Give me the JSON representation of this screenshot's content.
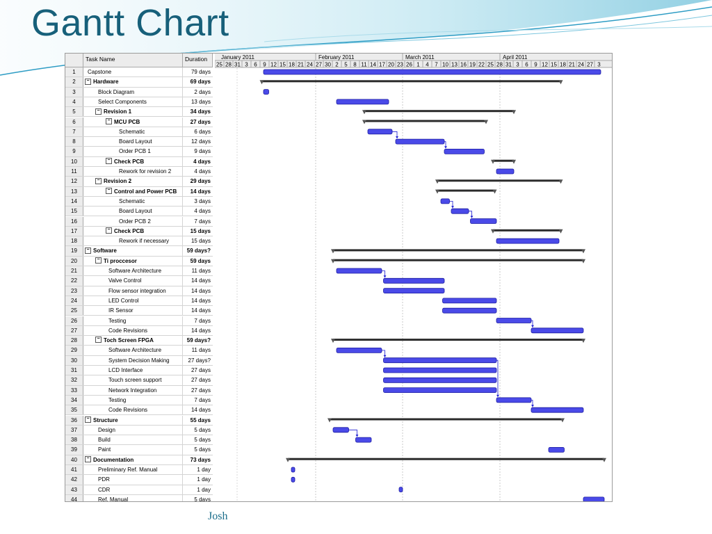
{
  "slide": {
    "title": "Gantt Chart",
    "author": "Josh"
  },
  "table": {
    "col_task": "Task Name",
    "col_duration": "Duration",
    "rows": [
      {
        "id": "1",
        "name": "Capstone",
        "dur": "79 days",
        "indent": 0,
        "bold": false,
        "summary": false
      },
      {
        "id": "2",
        "name": "Hardware",
        "dur": "69 days",
        "indent": 0,
        "bold": true,
        "summary": true
      },
      {
        "id": "3",
        "name": "Block Diagram",
        "dur": "2 days",
        "indent": 1,
        "bold": false,
        "summary": false
      },
      {
        "id": "4",
        "name": "Select Components",
        "dur": "13 days",
        "indent": 1,
        "bold": false,
        "summary": false
      },
      {
        "id": "5",
        "name": "Revision 1",
        "dur": "34 days",
        "indent": 1,
        "bold": true,
        "summary": true
      },
      {
        "id": "6",
        "name": "MCU PCB",
        "dur": "27 days",
        "indent": 2,
        "bold": true,
        "summary": true
      },
      {
        "id": "7",
        "name": "Schematic",
        "dur": "6 days",
        "indent": 3,
        "bold": false,
        "summary": false
      },
      {
        "id": "8",
        "name": "Board Layout",
        "dur": "12 days",
        "indent": 3,
        "bold": false,
        "summary": false
      },
      {
        "id": "9",
        "name": "Order PCB 1",
        "dur": "9 days",
        "indent": 3,
        "bold": false,
        "summary": false
      },
      {
        "id": "10",
        "name": "Check PCB",
        "dur": "4 days",
        "indent": 2,
        "bold": true,
        "summary": true
      },
      {
        "id": "11",
        "name": "Rework for revision 2",
        "dur": "4 days",
        "indent": 3,
        "bold": false,
        "summary": false
      },
      {
        "id": "12",
        "name": "Revision 2",
        "dur": "29 days",
        "indent": 1,
        "bold": true,
        "summary": true
      },
      {
        "id": "13",
        "name": "Control and Power PCB",
        "dur": "14 days",
        "indent": 2,
        "bold": true,
        "summary": true
      },
      {
        "id": "14",
        "name": "Schematic",
        "dur": "3 days",
        "indent": 3,
        "bold": false,
        "summary": false
      },
      {
        "id": "15",
        "name": "Board Layout",
        "dur": "4 days",
        "indent": 3,
        "bold": false,
        "summary": false
      },
      {
        "id": "16",
        "name": "Order PCB 2",
        "dur": "7 days",
        "indent": 3,
        "bold": false,
        "summary": false
      },
      {
        "id": "17",
        "name": "Check PCB",
        "dur": "15 days",
        "indent": 2,
        "bold": true,
        "summary": true
      },
      {
        "id": "18",
        "name": "Rework if necessary",
        "dur": "15 days",
        "indent": 3,
        "bold": false,
        "summary": false
      },
      {
        "id": "19",
        "name": "Software",
        "dur": "59 days?",
        "indent": 0,
        "bold": true,
        "summary": true
      },
      {
        "id": "20",
        "name": "Ti proccesor",
        "dur": "59 days",
        "indent": 1,
        "bold": true,
        "summary": true
      },
      {
        "id": "21",
        "name": "Software Architecture",
        "dur": "11 days",
        "indent": 2,
        "bold": false,
        "summary": false
      },
      {
        "id": "22",
        "name": "Valve Control",
        "dur": "14 days",
        "indent": 2,
        "bold": false,
        "summary": false
      },
      {
        "id": "23",
        "name": "Flow sensor integration",
        "dur": "14 days",
        "indent": 2,
        "bold": false,
        "summary": false
      },
      {
        "id": "24",
        "name": "LED Control",
        "dur": "14 days",
        "indent": 2,
        "bold": false,
        "summary": false
      },
      {
        "id": "25",
        "name": "IR Sensor",
        "dur": "14 days",
        "indent": 2,
        "bold": false,
        "summary": false
      },
      {
        "id": "26",
        "name": "Testing",
        "dur": "7 days",
        "indent": 2,
        "bold": false,
        "summary": false
      },
      {
        "id": "27",
        "name": "Code Revisions",
        "dur": "14 days",
        "indent": 2,
        "bold": false,
        "summary": false
      },
      {
        "id": "28",
        "name": "Toch Screen FPGA",
        "dur": "59 days?",
        "indent": 1,
        "bold": true,
        "summary": true
      },
      {
        "id": "29",
        "name": "Software Architecture",
        "dur": "11 days",
        "indent": 2,
        "bold": false,
        "summary": false
      },
      {
        "id": "30",
        "name": "System Decision Making",
        "dur": "27 days?",
        "indent": 2,
        "bold": false,
        "summary": false
      },
      {
        "id": "31",
        "name": "LCD Interface",
        "dur": "27 days",
        "indent": 2,
        "bold": false,
        "summary": false
      },
      {
        "id": "32",
        "name": "Touch screen support",
        "dur": "27 days",
        "indent": 2,
        "bold": false,
        "summary": false
      },
      {
        "id": "33",
        "name": "Network Integration",
        "dur": "27 days",
        "indent": 2,
        "bold": false,
        "summary": false
      },
      {
        "id": "34",
        "name": "Testing",
        "dur": "7 days",
        "indent": 2,
        "bold": false,
        "summary": false
      },
      {
        "id": "35",
        "name": "Code Revisions",
        "dur": "14 days",
        "indent": 2,
        "bold": false,
        "summary": false
      },
      {
        "id": "36",
        "name": "Structure",
        "dur": "55 days",
        "indent": 0,
        "bold": true,
        "summary": true
      },
      {
        "id": "37",
        "name": "Design",
        "dur": "5 days",
        "indent": 1,
        "bold": false,
        "summary": false
      },
      {
        "id": "38",
        "name": "Build",
        "dur": "5 days",
        "indent": 1,
        "bold": false,
        "summary": false
      },
      {
        "id": "39",
        "name": "Paint",
        "dur": "5 days",
        "indent": 1,
        "bold": false,
        "summary": false
      },
      {
        "id": "40",
        "name": "Documentation",
        "dur": "73 days",
        "indent": 0,
        "bold": true,
        "summary": true
      },
      {
        "id": "41",
        "name": "Preliminary Ref. Manual",
        "dur": "1 day",
        "indent": 1,
        "bold": false,
        "summary": false
      },
      {
        "id": "42",
        "name": "PDR",
        "dur": "1 day",
        "indent": 1,
        "bold": false,
        "summary": false
      },
      {
        "id": "43",
        "name": "CDR",
        "dur": "1 day",
        "indent": 1,
        "bold": false,
        "summary": false
      },
      {
        "id": "44",
        "name": "Ref. Manual",
        "dur": "5 days",
        "indent": 1,
        "bold": false,
        "summary": false
      }
    ]
  },
  "timescale": {
    "months": [
      {
        "label": "January 2011",
        "start_day": 1
      },
      {
        "label": "February 2011",
        "start_day": 29
      },
      {
        "label": "March 2011",
        "start_day": 54
      },
      {
        "label": "April 2011",
        "start_day": 82
      }
    ],
    "day_labels": [
      "25",
      "28",
      "31",
      "3",
      "6",
      "9",
      "12",
      "15",
      "18",
      "21",
      "24",
      "27",
      "30",
      "2",
      "5",
      "8",
      "11",
      "14",
      "17",
      "20",
      "23",
      "26",
      "1",
      "4",
      "7",
      "10",
      "13",
      "16",
      "19",
      "22",
      "25",
      "28",
      "31",
      "3",
      "6",
      "9",
      "12",
      "15",
      "18",
      "21",
      "24",
      "27",
      "3"
    ],
    "month_divider_days": [
      29,
      54,
      82
    ]
  },
  "chart_data": {
    "type": "gantt",
    "unit": "days from Dec 25 2010",
    "bars": [
      {
        "row": 1,
        "start": 14,
        "end": 111,
        "kind": "task"
      },
      {
        "row": 2,
        "start": 13.5,
        "end": 99.5,
        "kind": "summary"
      },
      {
        "row": 3,
        "start": 14,
        "end": 15.5,
        "kind": "task"
      },
      {
        "row": 4,
        "start": 35,
        "end": 50,
        "kind": "task"
      },
      {
        "row": 5,
        "start": 43,
        "end": 86,
        "kind": "summary"
      },
      {
        "row": 6,
        "start": 43,
        "end": 78,
        "kind": "summary"
      },
      {
        "row": 7,
        "start": 44,
        "end": 51,
        "kind": "task"
      },
      {
        "row": 8,
        "start": 52,
        "end": 66,
        "kind": "task"
      },
      {
        "row": 9,
        "start": 66,
        "end": 77.5,
        "kind": "task"
      },
      {
        "row": 10,
        "start": 80,
        "end": 86,
        "kind": "summary"
      },
      {
        "row": 11,
        "start": 81,
        "end": 86,
        "kind": "task"
      },
      {
        "row": 12,
        "start": 64,
        "end": 99.5,
        "kind": "summary"
      },
      {
        "row": 13,
        "start": 64,
        "end": 80.5,
        "kind": "summary"
      },
      {
        "row": 14,
        "start": 65,
        "end": 67.5,
        "kind": "task"
      },
      {
        "row": 15,
        "start": 68,
        "end": 73,
        "kind": "task"
      },
      {
        "row": 16,
        "start": 73.5,
        "end": 81,
        "kind": "task"
      },
      {
        "row": 17,
        "start": 80,
        "end": 99.5,
        "kind": "summary"
      },
      {
        "row": 18,
        "start": 81,
        "end": 99,
        "kind": "task"
      },
      {
        "row": 19,
        "start": 34,
        "end": 106,
        "kind": "summary"
      },
      {
        "row": 20,
        "start": 34,
        "end": 106,
        "kind": "summary"
      },
      {
        "row": 21,
        "start": 35,
        "end": 48,
        "kind": "task"
      },
      {
        "row": 22,
        "start": 48.5,
        "end": 66,
        "kind": "task"
      },
      {
        "row": 23,
        "start": 48.5,
        "end": 66,
        "kind": "task"
      },
      {
        "row": 24,
        "start": 65.5,
        "end": 81,
        "kind": "task"
      },
      {
        "row": 25,
        "start": 65.5,
        "end": 81,
        "kind": "task"
      },
      {
        "row": 26,
        "start": 81,
        "end": 91,
        "kind": "task"
      },
      {
        "row": 27,
        "start": 91,
        "end": 106,
        "kind": "task"
      },
      {
        "row": 28,
        "start": 34,
        "end": 106,
        "kind": "summary"
      },
      {
        "row": 29,
        "start": 35,
        "end": 48,
        "kind": "task"
      },
      {
        "row": 30,
        "start": 48.5,
        "end": 81,
        "kind": "task"
      },
      {
        "row": 31,
        "start": 48.5,
        "end": 81,
        "kind": "task"
      },
      {
        "row": 32,
        "start": 48.5,
        "end": 81,
        "kind": "task"
      },
      {
        "row": 33,
        "start": 48.5,
        "end": 81,
        "kind": "task"
      },
      {
        "row": 34,
        "start": 81,
        "end": 91,
        "kind": "task"
      },
      {
        "row": 35,
        "start": 91,
        "end": 106,
        "kind": "task"
      },
      {
        "row": 36,
        "start": 33,
        "end": 100,
        "kind": "summary"
      },
      {
        "row": 37,
        "start": 34,
        "end": 38.5,
        "kind": "task"
      },
      {
        "row": 38,
        "start": 40.5,
        "end": 45,
        "kind": "task"
      },
      {
        "row": 39,
        "start": 96,
        "end": 100.5,
        "kind": "task"
      },
      {
        "row": 40,
        "start": 21,
        "end": 112,
        "kind": "summary"
      },
      {
        "row": 41,
        "start": 22,
        "end": 23,
        "kind": "task"
      },
      {
        "row": 42,
        "start": 22,
        "end": 23,
        "kind": "task"
      },
      {
        "row": 43,
        "start": 53,
        "end": 54,
        "kind": "task"
      },
      {
        "row": 44,
        "start": 106,
        "end": 112,
        "kind": "task"
      }
    ],
    "links": [
      {
        "from": 7,
        "to": 8
      },
      {
        "from": 8,
        "to": 9
      },
      {
        "from": 14,
        "to": 15
      },
      {
        "from": 15,
        "to": 16
      },
      {
        "from": 21,
        "to": 22
      },
      {
        "from": 26,
        "to": 27
      },
      {
        "from": 29,
        "to": 30
      },
      {
        "from": 30,
        "to": 34
      },
      {
        "from": 34,
        "to": 35
      },
      {
        "from": 37,
        "to": 38
      }
    ],
    "colors": {
      "task": "#4a4ae8",
      "task_edge": "#1c1ca0",
      "summary": "#2b2b2b",
      "link": "#1a1ad0"
    }
  }
}
